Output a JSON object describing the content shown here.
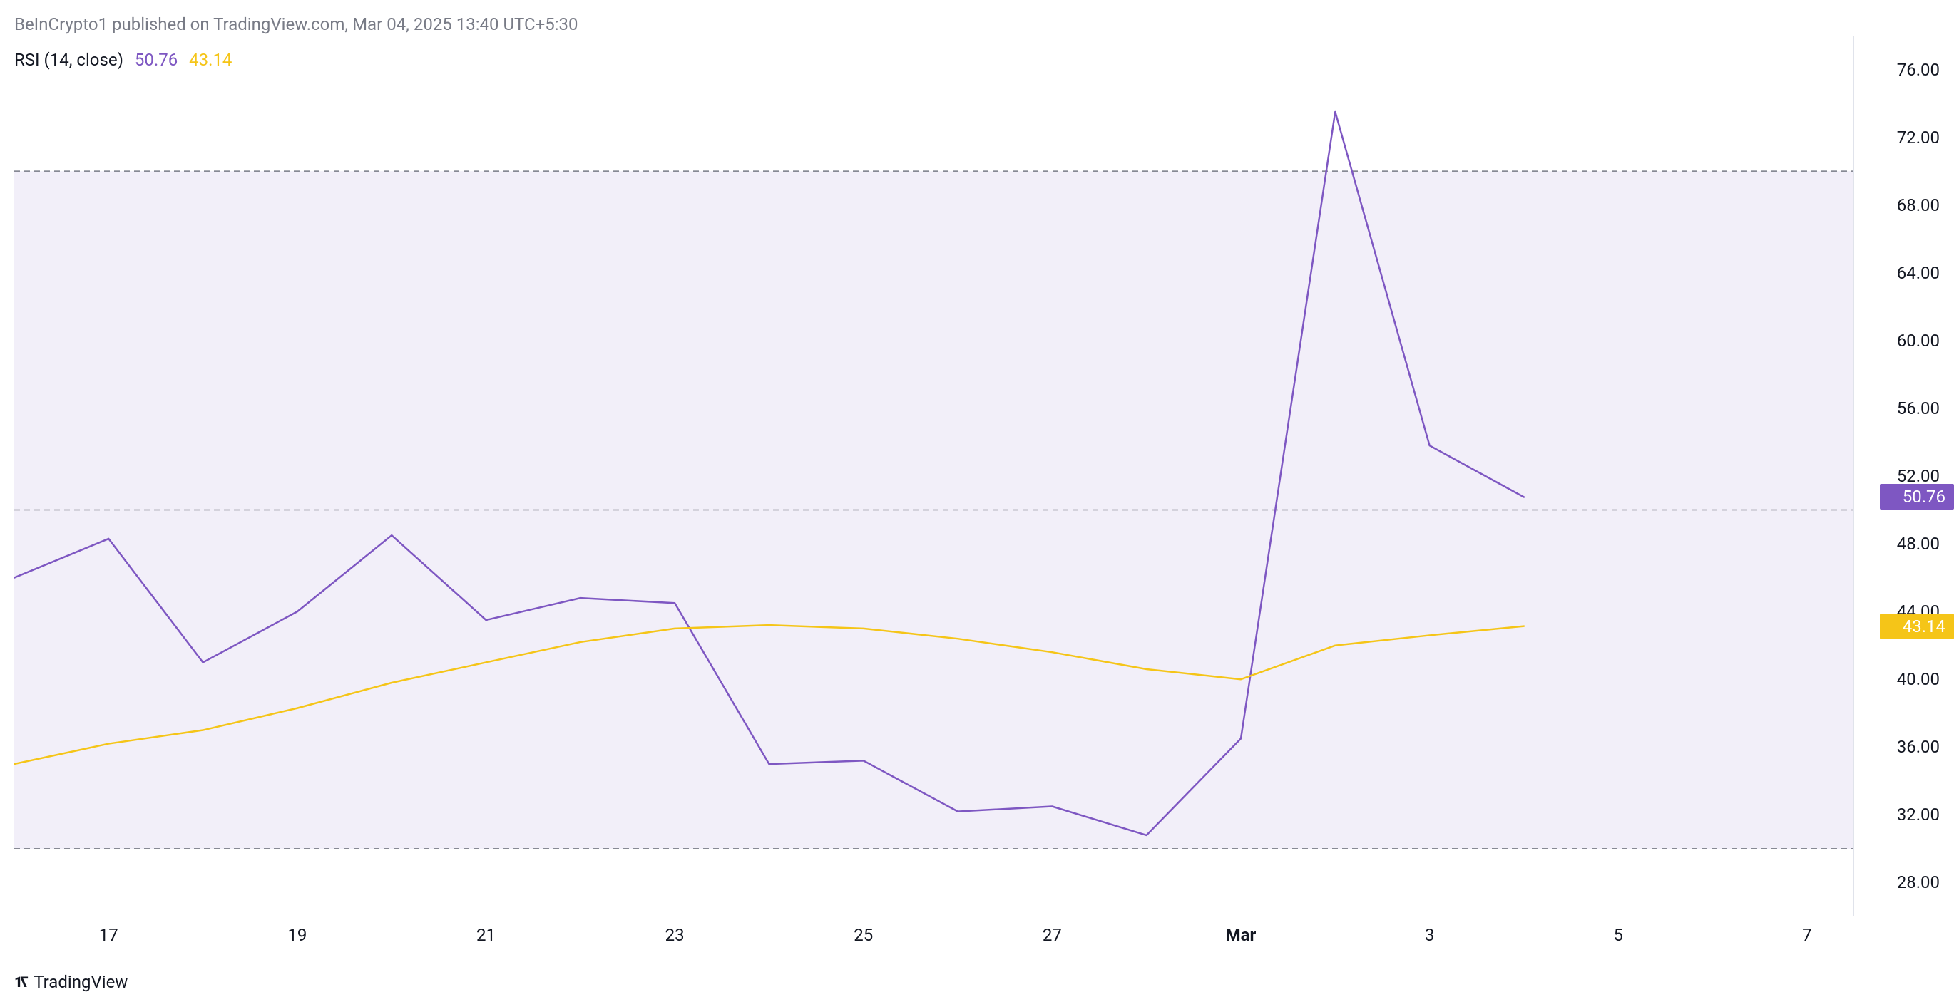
{
  "attribution": "BeInCrypto1 published on TradingView.com, Mar 04, 2025 13:40 UTC+5:30",
  "indicator": {
    "name": "RSI",
    "params": "(14, close)",
    "value1": "50.76",
    "value2": "43.14"
  },
  "branding": "TradingView",
  "chart": {
    "type": "line",
    "background_color": "#ffffff",
    "fill_band_color": "#f2eff9",
    "guide_line_color": "#787b86",
    "guide_dash": "8 6",
    "axis_color": "#e0e3eb",
    "tick_font_color": "#131722",
    "upper_band": 70,
    "lower_band": 30,
    "midline": 50,
    "y_axis": {
      "min": 26,
      "max": 78,
      "tick_step": 4,
      "ticks": [
        28,
        32,
        36,
        40,
        44,
        48,
        52,
        56,
        60,
        64,
        68,
        72,
        76
      ]
    },
    "x_axis": {
      "min": 16,
      "max": 26,
      "ticks": [
        {
          "pos": 17,
          "label": "17",
          "bold": false
        },
        {
          "pos": 19,
          "label": "19",
          "bold": false
        },
        {
          "pos": 21,
          "label": "21",
          "bold": false
        },
        {
          "pos": 23,
          "label": "23",
          "bold": false
        },
        {
          "pos": 25,
          "label": "25",
          "bold": false
        },
        {
          "pos": 27,
          "label": "27",
          "bold": false
        },
        {
          "pos": 29,
          "label": "Mar",
          "bold": true
        },
        {
          "pos": 31,
          "label": "3",
          "bold": false
        },
        {
          "pos": 33,
          "label": "5",
          "bold": false
        },
        {
          "pos": 35,
          "label": "7",
          "bold": false
        }
      ],
      "domain_min": 16,
      "domain_max": 35.5
    },
    "series": [
      {
        "name": "rsi",
        "color": "#7e57c2",
        "width": 2.5,
        "tag_bg": "#7e57c2",
        "tag_value": "50.76",
        "points": [
          {
            "x": 16,
            "y": 46.0
          },
          {
            "x": 17,
            "y": 48.3
          },
          {
            "x": 18,
            "y": 41.0
          },
          {
            "x": 19,
            "y": 44.0
          },
          {
            "x": 20,
            "y": 48.5
          },
          {
            "x": 21,
            "y": 43.5
          },
          {
            "x": 22,
            "y": 44.8
          },
          {
            "x": 23,
            "y": 44.5
          },
          {
            "x": 24,
            "y": 35.0
          },
          {
            "x": 25,
            "y": 35.2
          },
          {
            "x": 26,
            "y": 32.2
          },
          {
            "x": 27,
            "y": 32.5
          },
          {
            "x": 28,
            "y": 30.8
          },
          {
            "x": 29,
            "y": 36.5
          },
          {
            "x": 30,
            "y": 73.5
          },
          {
            "x": 31,
            "y": 53.8
          },
          {
            "x": 32,
            "y": 50.76
          }
        ]
      },
      {
        "name": "rsi-ma",
        "color": "#f5c518",
        "width": 2.5,
        "tag_bg": "#f5c518",
        "tag_value": "43.14",
        "points": [
          {
            "x": 16,
            "y": 35.0
          },
          {
            "x": 17,
            "y": 36.2
          },
          {
            "x": 18,
            "y": 37.0
          },
          {
            "x": 19,
            "y": 38.3
          },
          {
            "x": 20,
            "y": 39.8
          },
          {
            "x": 21,
            "y": 41.0
          },
          {
            "x": 22,
            "y": 42.2
          },
          {
            "x": 23,
            "y": 43.0
          },
          {
            "x": 24,
            "y": 43.2
          },
          {
            "x": 25,
            "y": 43.0
          },
          {
            "x": 26,
            "y": 42.4
          },
          {
            "x": 27,
            "y": 41.6
          },
          {
            "x": 28,
            "y": 40.6
          },
          {
            "x": 29,
            "y": 40.0
          },
          {
            "x": 30,
            "y": 42.0
          },
          {
            "x": 31,
            "y": 42.6
          },
          {
            "x": 32,
            "y": 43.14
          }
        ]
      }
    ]
  }
}
